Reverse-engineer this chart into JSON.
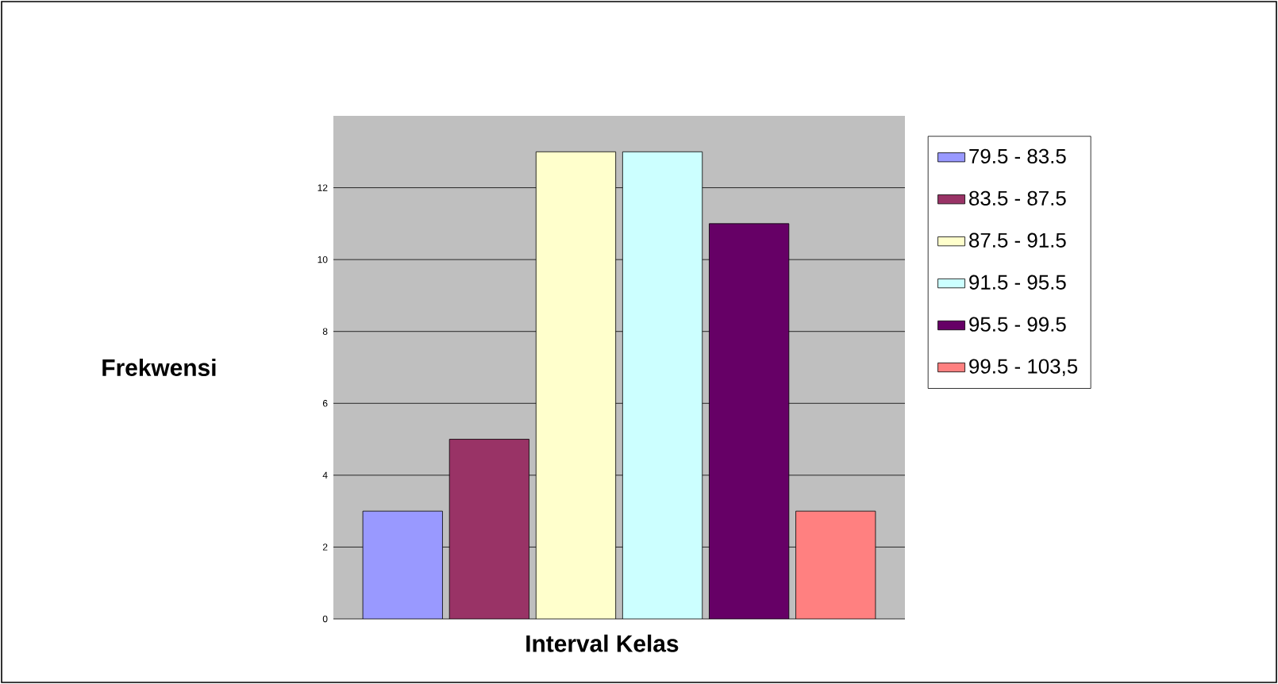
{
  "chart_data": {
    "type": "bar",
    "xlabel": "Interval Kelas",
    "ylabel": "Frekwensi",
    "categories": [
      null,
      null,
      null,
      null,
      null,
      null
    ],
    "series": [
      {
        "name": "79.5 - 83.5",
        "color": "#9999ff",
        "values": [
          3,
          null,
          null,
          null,
          null,
          null
        ]
      },
      {
        "name": "83.5 - 87.5",
        "color": "#993366",
        "values": [
          null,
          5,
          null,
          null,
          null,
          null
        ]
      },
      {
        "name": "87.5 - 91.5",
        "color": "#ffffcc",
        "values": [
          null,
          null,
          13,
          null,
          null,
          null
        ]
      },
      {
        "name": "91.5 - 95.5",
        "color": "#ccffff",
        "values": [
          null,
          null,
          null,
          13,
          null,
          null
        ]
      },
      {
        "name": "95.5 - 99.5",
        "color": "#660066",
        "values": [
          null,
          null,
          null,
          null,
          11,
          null
        ]
      },
      {
        "name": "99.5 - 103,5",
        "color": "#ff8080",
        "values": [
          null,
          null,
          null,
          null,
          null,
          3
        ]
      }
    ],
    "ylim": [
      0,
      14
    ],
    "yticks": [
      0,
      2,
      4,
      6,
      8,
      10,
      12
    ],
    "grid": "y",
    "legend": "right"
  }
}
